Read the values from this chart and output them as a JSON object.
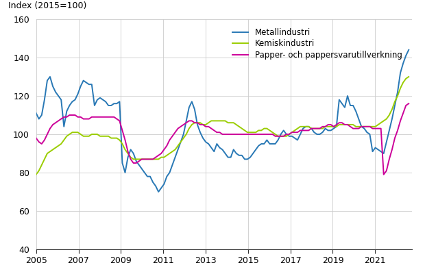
{
  "ylabel": "Index (2015=100)",
  "xlim": [
    2005.0,
    2022.75
  ],
  "ylim": [
    40,
    160
  ],
  "yticks": [
    40,
    60,
    80,
    100,
    120,
    140,
    160
  ],
  "xticks": [
    2005,
    2007,
    2009,
    2011,
    2013,
    2015,
    2017,
    2019,
    2021
  ],
  "legend": [
    "Metallindustri",
    "Kemiskindustri",
    "Papper- och pappersvarutillverkning"
  ],
  "colors": [
    "#2878b5",
    "#9acd00",
    "#cc0099"
  ],
  "line_width": 1.4,
  "metal": [
    111,
    108,
    110,
    118,
    128,
    130,
    125,
    122,
    120,
    118,
    104,
    112,
    115,
    117,
    118,
    121,
    125,
    128,
    127,
    126,
    126,
    115,
    118,
    119,
    118,
    117,
    115,
    115,
    116,
    116,
    117,
    85,
    80,
    88,
    92,
    90,
    86,
    84,
    82,
    80,
    78,
    78,
    75,
    73,
    70,
    72,
    74,
    78,
    80,
    84,
    88,
    92,
    96,
    100,
    107,
    114,
    117,
    113,
    105,
    101,
    98,
    96,
    95,
    93,
    91,
    95,
    93,
    92,
    90,
    88,
    88,
    92,
    90,
    89,
    89,
    87,
    87,
    88,
    90,
    92,
    94,
    95,
    95,
    97,
    95,
    95,
    95,
    97,
    100,
    102,
    100,
    99,
    99,
    98,
    97,
    100,
    103,
    104,
    104,
    103,
    101,
    100,
    100,
    101,
    103,
    102,
    102,
    103,
    104,
    118,
    116,
    114,
    120,
    115,
    115,
    112,
    108,
    104,
    103,
    101,
    100,
    91,
    93,
    92,
    91,
    90,
    96,
    102,
    108,
    115,
    122,
    132,
    137,
    141,
    144
  ],
  "kemi": [
    79,
    81,
    84,
    87,
    90,
    91,
    92,
    93,
    94,
    95,
    97,
    99,
    100,
    101,
    101,
    101,
    100,
    99,
    99,
    99,
    100,
    100,
    100,
    99,
    99,
    99,
    99,
    98,
    98,
    98,
    97,
    95,
    92,
    90,
    88,
    87,
    87,
    87,
    87,
    87,
    87,
    87,
    87,
    87,
    87,
    88,
    88,
    89,
    90,
    91,
    92,
    94,
    96,
    98,
    100,
    103,
    105,
    106,
    106,
    106,
    105,
    105,
    106,
    107,
    107,
    107,
    107,
    107,
    107,
    106,
    106,
    106,
    105,
    104,
    103,
    102,
    101,
    101,
    101,
    101,
    102,
    102,
    103,
    103,
    102,
    101,
    100,
    99,
    99,
    99,
    99,
    100,
    101,
    102,
    103,
    104,
    104,
    104,
    104,
    103,
    103,
    103,
    103,
    103,
    104,
    104,
    104,
    104,
    104,
    105,
    105,
    105,
    105,
    105,
    105,
    104,
    104,
    104,
    104,
    104,
    104,
    104,
    104,
    105,
    106,
    107,
    108,
    110,
    113,
    117,
    120,
    124,
    127,
    129,
    130
  ],
  "papper": [
    98,
    96,
    95,
    97,
    100,
    103,
    105,
    106,
    107,
    108,
    109,
    109,
    110,
    110,
    110,
    109,
    109,
    108,
    108,
    108,
    109,
    109,
    109,
    109,
    109,
    109,
    109,
    109,
    109,
    108,
    107,
    102,
    97,
    91,
    87,
    85,
    85,
    86,
    87,
    87,
    87,
    87,
    87,
    88,
    89,
    90,
    92,
    94,
    97,
    99,
    101,
    103,
    104,
    105,
    106,
    107,
    107,
    106,
    106,
    105,
    105,
    104,
    104,
    103,
    102,
    101,
    101,
    100,
    100,
    100,
    100,
    100,
    100,
    100,
    100,
    100,
    100,
    100,
    100,
    100,
    100,
    100,
    100,
    100,
    100,
    100,
    99,
    99,
    99,
    99,
    100,
    100,
    101,
    101,
    101,
    102,
    102,
    102,
    102,
    103,
    103,
    103,
    103,
    104,
    104,
    105,
    105,
    104,
    105,
    106,
    106,
    105,
    105,
    104,
    103,
    103,
    103,
    104,
    104,
    104,
    104,
    103,
    103,
    103,
    103,
    79,
    81,
    87,
    92,
    98,
    102,
    107,
    111,
    115,
    116
  ]
}
